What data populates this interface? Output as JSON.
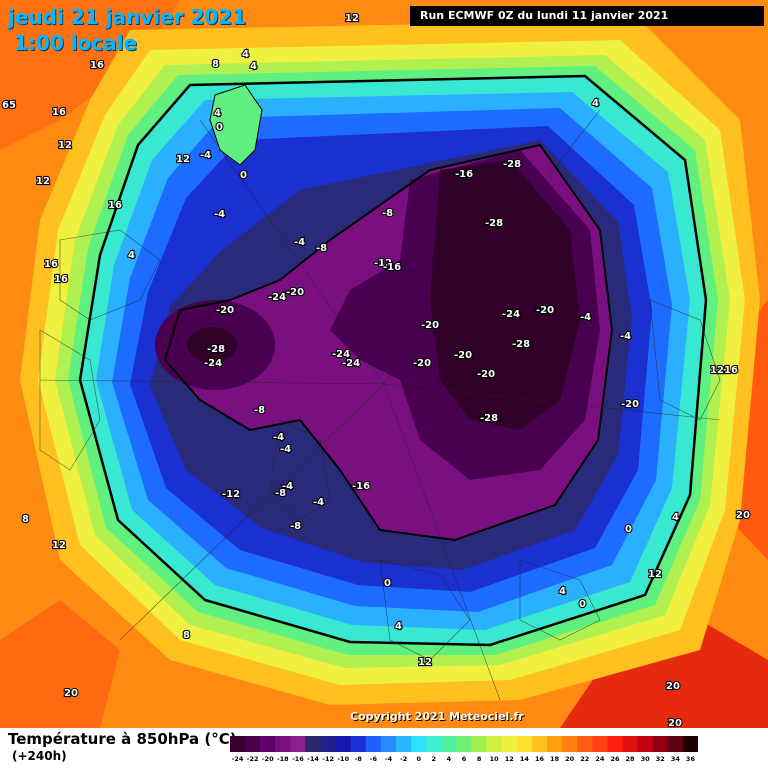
{
  "header": {
    "date_title": "jeudi 21 janvier 2021",
    "time_title": "1:00 locale",
    "run_info": "Run ECMWF 0Z du lundi 11 janvier 2021"
  },
  "copyright": "Copyright 2021 Meteociel.fr",
  "legend": {
    "title": "Température à 850hPa (°C)",
    "subtitle": "(+240h)",
    "ticks": [
      "-24",
      "-22",
      "-20",
      "-18",
      "-16",
      "-14",
      "-12",
      "-10",
      "-8",
      "-6",
      "-4",
      "-2",
      "0",
      "2",
      "4",
      "6",
      "8",
      "10",
      "12",
      "14",
      "16",
      "18",
      "20",
      "22",
      "24",
      "26",
      "28",
      "30",
      "32",
      "34",
      "36"
    ],
    "colors": [
      "#3a0030",
      "#4a0050",
      "#62006a",
      "#7a1080",
      "#8a2090",
      "#2a2a6a",
      "#20208a",
      "#1818b0",
      "#1a30d8",
      "#2060ff",
      "#2a8cff",
      "#2ab8ff",
      "#30e0ff",
      "#40f0d0",
      "#50f0a0",
      "#70f070",
      "#a0f050",
      "#d0f040",
      "#f0f040",
      "#ffe030",
      "#ffc020",
      "#ffa010",
      "#ff8010",
      "#ff6010",
      "#ff4010",
      "#ff2010",
      "#e01010",
      "#c00010",
      "#900010",
      "#600010",
      "#200000"
    ]
  },
  "map_labels": [
    {
      "text": "16"
    },
    {
      "text": "12"
    },
    {
      "text": "4"
    },
    {
      "text": "8"
    },
    {
      "text": "4"
    },
    {
      "text": "65"
    },
    {
      "text": "16"
    },
    {
      "text": "12"
    },
    {
      "text": "4"
    },
    {
      "text": "0"
    },
    {
      "text": "-4"
    },
    {
      "text": "4"
    },
    {
      "text": "12"
    },
    {
      "text": "12"
    },
    {
      "text": "16"
    },
    {
      "text": "16"
    },
    {
      "text": "-4"
    },
    {
      "text": "16"
    },
    {
      "text": "-4"
    },
    {
      "text": "-8"
    },
    {
      "text": "-8"
    },
    {
      "text": "-16"
    },
    {
      "text": "-28"
    },
    {
      "text": "-28"
    },
    {
      "text": "-12"
    },
    {
      "text": "-16"
    },
    {
      "text": "-20"
    },
    {
      "text": "-24"
    },
    {
      "text": "-20"
    },
    {
      "text": "-20"
    },
    {
      "text": "-24"
    },
    {
      "text": "-28"
    },
    {
      "text": "-24"
    },
    {
      "text": "-24"
    },
    {
      "text": "-24"
    },
    {
      "text": "-20"
    },
    {
      "text": "-20"
    },
    {
      "text": "-20"
    },
    {
      "text": "-28"
    },
    {
      "text": "-20"
    },
    {
      "text": "-4"
    },
    {
      "text": "-4"
    },
    {
      "text": "12"
    },
    {
      "text": "16"
    },
    {
      "text": "-20"
    },
    {
      "text": "-28"
    },
    {
      "text": "-8"
    },
    {
      "text": "-4"
    },
    {
      "text": "-4"
    },
    {
      "text": "-8"
    },
    {
      "text": "-4"
    },
    {
      "text": "-12"
    },
    {
      "text": "-16"
    },
    {
      "text": "-8"
    },
    {
      "text": "0"
    },
    {
      "text": "4"
    },
    {
      "text": "20"
    },
    {
      "text": "0"
    },
    {
      "text": "4"
    },
    {
      "text": "0"
    },
    {
      "text": "12"
    },
    {
      "text": "4"
    },
    {
      "text": "8"
    },
    {
      "text": "12"
    },
    {
      "text": "20"
    },
    {
      "text": "20"
    },
    {
      "text": "20"
    },
    {
      "text": "8"
    },
    {
      "text": "12"
    },
    {
      "text": "4"
    },
    {
      "text": "-4"
    },
    {
      "text": "0"
    }
  ]
}
